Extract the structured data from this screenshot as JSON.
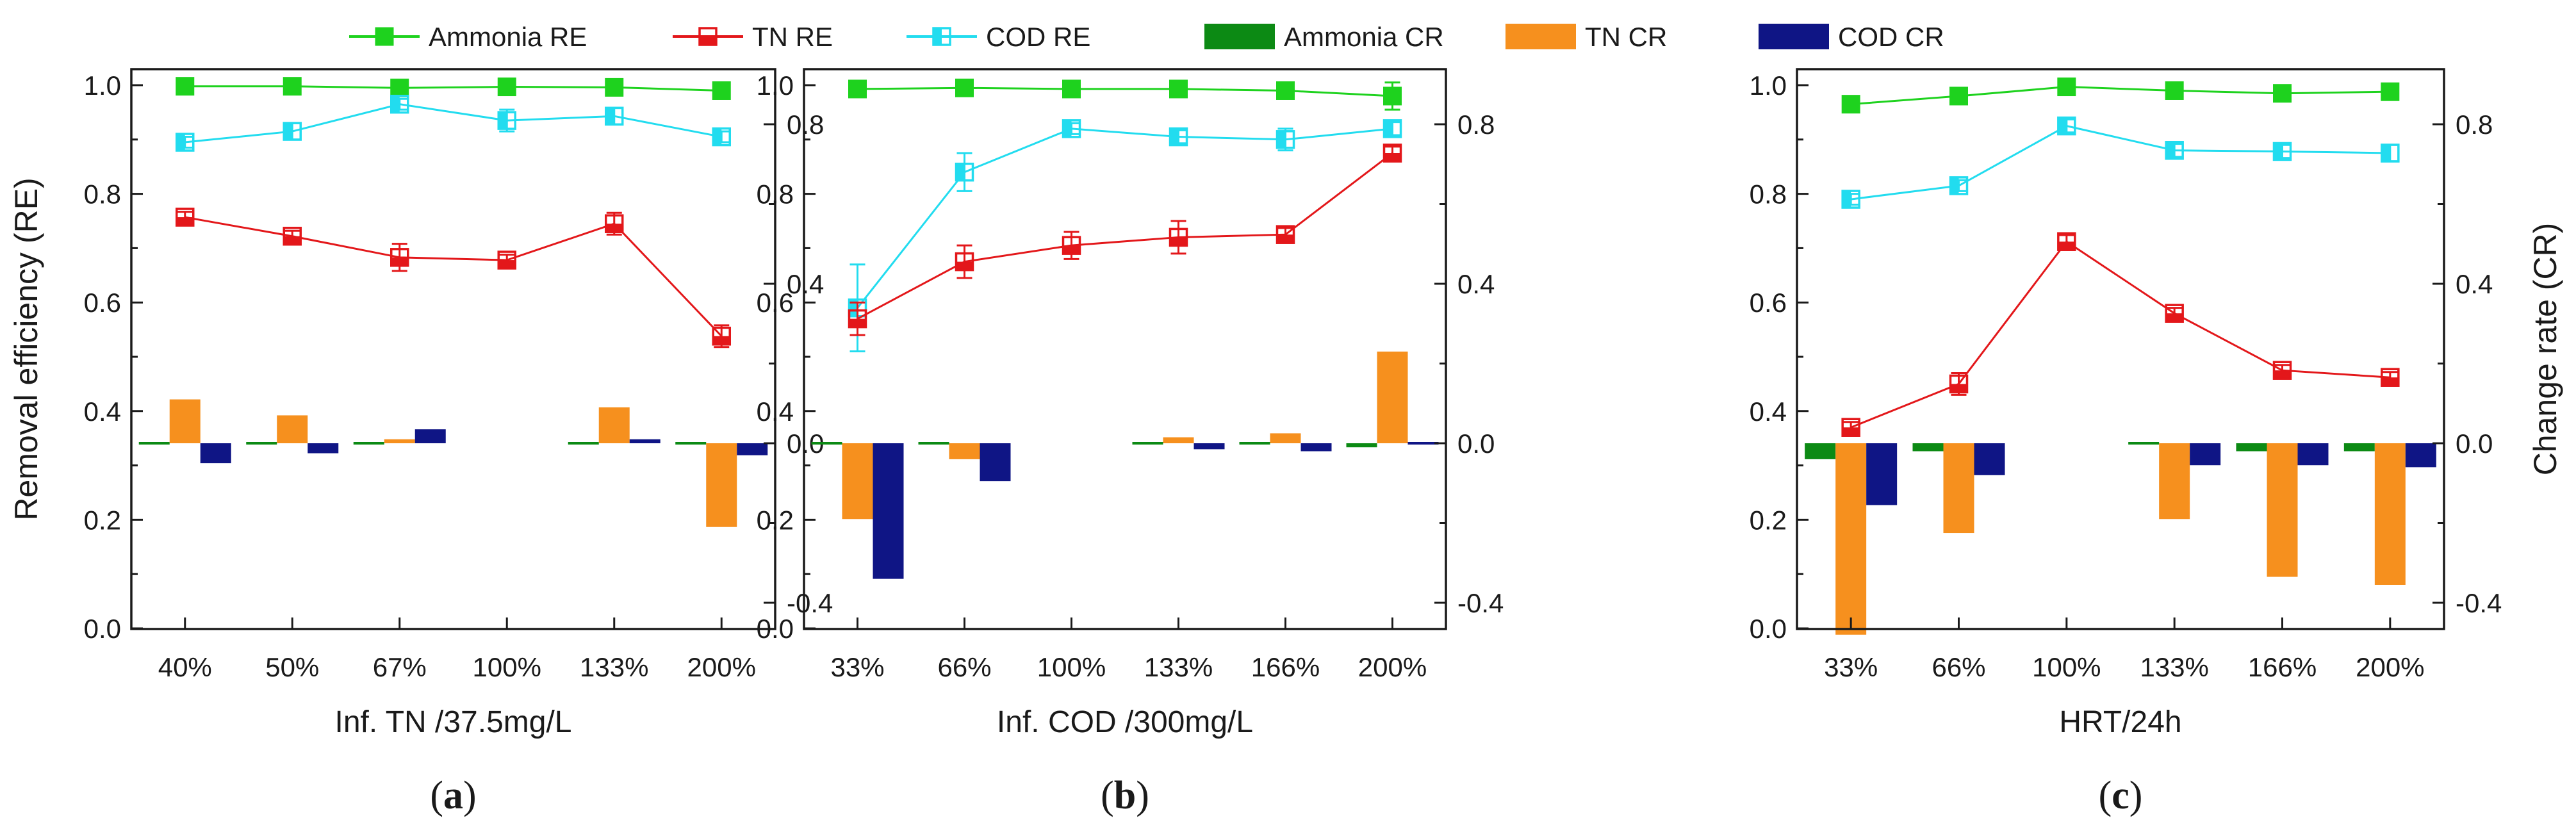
{
  "colors": {
    "ammonia_re": "#1ed21e",
    "tn_re": "#e3171a",
    "cod_re": "#22dcef",
    "ammonia_cr": "#0c8a14",
    "tn_cr": "#f6901e",
    "cod_cr": "#0f1585",
    "axis": "#1a1a1a"
  },
  "legend": [
    {
      "key": "ammonia_re",
      "label": "Ammonia RE",
      "kind": "line",
      "marker": "filled"
    },
    {
      "key": "tn_re",
      "label": "TN RE",
      "kind": "line",
      "marker": "half"
    },
    {
      "key": "cod_re",
      "label": "COD RE",
      "kind": "line",
      "marker": "half-v"
    },
    {
      "key": "ammonia_cr",
      "label": "Ammonia CR",
      "kind": "bar"
    },
    {
      "key": "tn_cr",
      "label": "TN CR",
      "kind": "bar"
    },
    {
      "key": "cod_cr",
      "label": "COD CR",
      "kind": "bar"
    }
  ],
  "chart_data": [
    {
      "type": "line+bar",
      "panel": "(a)",
      "letter": "a",
      "xlabel": "Inf. TN /37.5mg/L",
      "ylabel_left": "Removal efficiency (RE)",
      "ylabel_right": "",
      "categories": [
        "40%",
        "50%",
        "67%",
        "100%",
        "133%",
        "200%"
      ],
      "ylim_left": [
        0.0,
        1.0
      ],
      "yticks_left": [
        "0.0",
        "0.2",
        "0.4",
        "0.6",
        "0.8",
        "1.0"
      ],
      "ylim_right": [
        -0.5,
        1.0
      ],
      "yticks_right": [
        "-0.4",
        "0.0",
        "0.4",
        "0.8"
      ],
      "re_series": [
        {
          "key": "ammonia_re",
          "name": "Ammonia RE",
          "values": [
            0.998,
            0.998,
            0.995,
            0.997,
            0.996,
            0.99
          ],
          "errors": [
            0.005,
            0.005,
            0.005,
            0.005,
            0.005,
            0.012
          ]
        },
        {
          "key": "cod_re",
          "name": "COD RE",
          "values": [
            0.895,
            0.915,
            0.965,
            0.935,
            0.943,
            0.905
          ],
          "errors": [
            0.01,
            0.015,
            0.01,
            0.02,
            0.015,
            0.01
          ]
        },
        {
          "key": "tn_re",
          "name": "TN RE",
          "values": [
            0.757,
            0.722,
            0.683,
            0.678,
            0.745,
            0.538
          ],
          "errors": [
            0.01,
            0.01,
            0.025,
            0.01,
            0.02,
            0.02
          ]
        }
      ],
      "cr_series": [
        {
          "key": "ammonia_cr",
          "name": "Ammonia CR",
          "values": [
            0.0,
            0.0,
            0.0,
            null,
            0.0,
            -0.005
          ]
        },
        {
          "key": "tn_cr",
          "name": "TN CR",
          "values": [
            0.11,
            0.07,
            0.01,
            null,
            0.09,
            -0.21
          ]
        },
        {
          "key": "cod_cr",
          "name": "COD CR",
          "values": [
            -0.05,
            -0.025,
            0.035,
            null,
            0.01,
            -0.03
          ]
        }
      ]
    },
    {
      "type": "line+bar",
      "panel": "(b)",
      "letter": "b",
      "xlabel": "Inf. COD /300mg/L",
      "ylabel_left": "",
      "ylabel_right": "",
      "categories": [
        "33%",
        "66%",
        "100%",
        "133%",
        "166%",
        "200%"
      ],
      "ylim_left": [
        0.0,
        1.0
      ],
      "yticks_left": [
        "0.0",
        "0.2",
        "0.4",
        "0.6",
        "0.8",
        "1.0"
      ],
      "ylim_right": [
        -0.5,
        1.0
      ],
      "yticks_right": [
        "-0.4",
        "0.0",
        "0.4",
        "0.8"
      ],
      "re_series": [
        {
          "key": "ammonia_re",
          "name": "Ammonia RE",
          "values": [
            0.993,
            0.995,
            0.993,
            0.993,
            0.99,
            0.98
          ],
          "errors": [
            0.005,
            0.005,
            0.005,
            0.005,
            0.006,
            0.025
          ]
        },
        {
          "key": "cod_re",
          "name": "COD RE",
          "values": [
            0.59,
            0.84,
            0.92,
            0.905,
            0.9,
            0.92
          ],
          "errors": [
            0.08,
            0.035,
            0.01,
            0.012,
            0.02,
            0.012
          ]
        },
        {
          "key": "tn_re",
          "name": "TN RE",
          "values": [
            0.57,
            0.675,
            0.705,
            0.72,
            0.725,
            0.875
          ],
          "errors": [
            0.03,
            0.03,
            0.025,
            0.03,
            0.012,
            0.012
          ]
        }
      ],
      "cr_series": [
        {
          "key": "ammonia_cr",
          "name": "Ammonia CR",
          "values": [
            0.0,
            0.0,
            null,
            0.0,
            0.0,
            -0.01
          ]
        },
        {
          "key": "tn_cr",
          "name": "TN CR",
          "values": [
            -0.19,
            -0.04,
            null,
            0.015,
            0.025,
            0.23
          ]
        },
        {
          "key": "cod_cr",
          "name": "COD CR",
          "values": [
            -0.34,
            -0.095,
            null,
            -0.015,
            -0.02,
            0.0
          ]
        }
      ]
    },
    {
      "type": "line+bar",
      "panel": "(c)",
      "letter": "c",
      "xlabel": "HRT/24h",
      "ylabel_left": "",
      "ylabel_right": "Change rate (CR)",
      "categories": [
        "33%",
        "66%",
        "100%",
        "133%",
        "166%",
        "200%"
      ],
      "ylim_left": [
        0.0,
        1.0
      ],
      "yticks_left": [
        "0.0",
        "0.2",
        "0.4",
        "0.6",
        "0.8",
        "1.0"
      ],
      "ylim_right": [
        -0.5,
        1.0
      ],
      "yticks_right": [
        "-0.4",
        "0.0",
        "0.4",
        "0.8"
      ],
      "re_series": [
        {
          "key": "ammonia_re",
          "name": "Ammonia RE",
          "values": [
            0.965,
            0.98,
            0.997,
            0.99,
            0.985,
            0.988
          ],
          "errors": [
            0.006,
            0.006,
            0.006,
            0.006,
            0.006,
            0.006
          ]
        },
        {
          "key": "cod_re",
          "name": "COD RE",
          "values": [
            0.79,
            0.815,
            0.925,
            0.88,
            0.878,
            0.875
          ],
          "errors": [
            0.01,
            0.01,
            0.012,
            0.012,
            0.012,
            0.015
          ]
        },
        {
          "key": "tn_re",
          "name": "TN RE",
          "values": [
            0.37,
            0.45,
            0.712,
            0.58,
            0.475,
            0.462
          ],
          "errors": [
            0.01,
            0.02,
            0.012,
            0.01,
            0.01,
            0.01
          ]
        }
      ],
      "cr_series": [
        {
          "key": "ammonia_cr",
          "name": "Ammonia CR",
          "values": [
            -0.04,
            -0.02,
            null,
            0.0,
            -0.02,
            -0.02
          ]
        },
        {
          "key": "tn_cr",
          "name": "TN CR",
          "values": [
            -0.48,
            -0.225,
            null,
            -0.19,
            -0.335,
            -0.355
          ]
        },
        {
          "key": "cod_cr",
          "name": "COD CR",
          "values": [
            -0.155,
            -0.08,
            null,
            -0.055,
            -0.055,
            -0.06
          ]
        }
      ]
    }
  ]
}
